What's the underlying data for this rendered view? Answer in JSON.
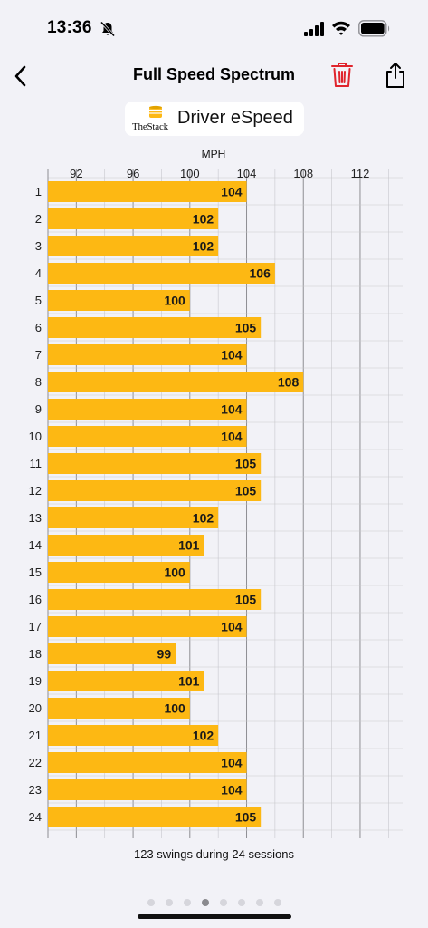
{
  "status": {
    "time": "13:36"
  },
  "nav": {
    "title": "Full Speed Spectrum"
  },
  "badge": {
    "logo_text": "TheStack",
    "label": "Driver eSpeed"
  },
  "chart_data": {
    "type": "bar",
    "orientation": "horizontal",
    "xlabel": "MPH",
    "x_ticks": [
      92,
      96,
      100,
      104,
      108,
      112
    ],
    "xlim": [
      90,
      115
    ],
    "grid": true,
    "bar_color": "#fdb813",
    "categories": [
      "1",
      "2",
      "3",
      "4",
      "5",
      "6",
      "7",
      "8",
      "9",
      "10",
      "11",
      "12",
      "13",
      "14",
      "15",
      "16",
      "17",
      "18",
      "19",
      "20",
      "21",
      "22",
      "23",
      "24"
    ],
    "values": [
      104,
      102,
      102,
      106,
      100,
      105,
      104,
      108,
      104,
      104,
      105,
      105,
      102,
      101,
      100,
      105,
      104,
      99,
      101,
      100,
      102,
      104,
      104,
      105
    ]
  },
  "summary": "123 swings during 24 sessions",
  "pager": {
    "count": 8,
    "active": 3
  },
  "colors": {
    "accent_bar": "#fdb813",
    "trash": "#e0242c",
    "background": "#f2f2f7"
  }
}
